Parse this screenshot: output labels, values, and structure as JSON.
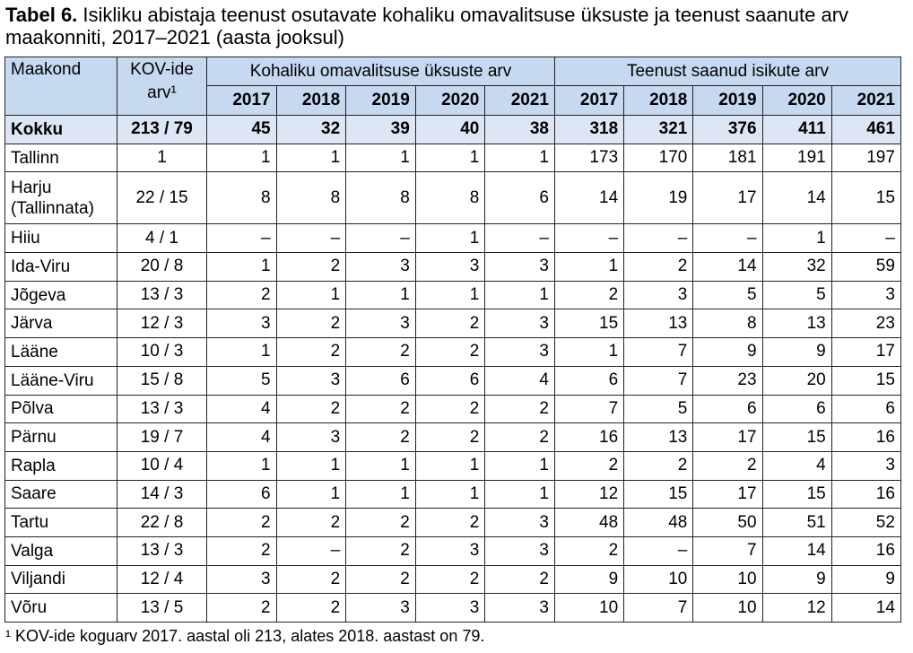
{
  "title": {
    "label": "Tabel 6.",
    "text": "Isikliku abistaja teenust osutavate kohaliku omavalitsuse üksuste ja teenust saanute arv maakonniti, 2017–2021 (aasta jooksul)"
  },
  "table": {
    "header": {
      "county": "Maakond",
      "kov": "KOV-ide arv¹",
      "group_units": "Kohaliku omavalitsuse üksuste arv",
      "group_persons": "Teenust saanud isikute arv",
      "years_units": [
        "2017",
        "2018",
        "2019",
        "2020",
        "2021"
      ],
      "years_persons": [
        "2017",
        "2018",
        "2019",
        "2020",
        "2021"
      ]
    },
    "rows": [
      [
        "Kokku",
        "213 / 79",
        "45",
        "32",
        "39",
        "40",
        "38",
        "318",
        "321",
        "376",
        "411",
        "461"
      ],
      [
        "Tallinn",
        "1",
        "1",
        "1",
        "1",
        "1",
        "1",
        "173",
        "170",
        "181",
        "191",
        "197"
      ],
      [
        "Harju (Tallinnata)",
        "22 / 15",
        "8",
        "8",
        "8",
        "8",
        "6",
        "14",
        "19",
        "17",
        "14",
        "15"
      ],
      [
        "Hiiu",
        "4 / 1",
        "–",
        "–",
        "–",
        "1",
        "–",
        "–",
        "–",
        "–",
        "1",
        "–"
      ],
      [
        "Ida-Viru",
        "20 / 8",
        "1",
        "2",
        "3",
        "3",
        "3",
        "1",
        "2",
        "14",
        "32",
        "59"
      ],
      [
        "Jõgeva",
        "13 / 3",
        "2",
        "1",
        "1",
        "1",
        "1",
        "2",
        "3",
        "5",
        "5",
        "3"
      ],
      [
        "Järva",
        "12 / 3",
        "3",
        "2",
        "3",
        "2",
        "3",
        "15",
        "13",
        "8",
        "13",
        "23"
      ],
      [
        "Lääne",
        "10 / 3",
        "1",
        "2",
        "2",
        "2",
        "3",
        "1",
        "7",
        "9",
        "9",
        "17"
      ],
      [
        "Lääne-Viru",
        "15 / 8",
        "5",
        "3",
        "6",
        "6",
        "4",
        "6",
        "7",
        "23",
        "20",
        "15"
      ],
      [
        "Põlva",
        "13 / 3",
        "4",
        "2",
        "2",
        "2",
        "2",
        "7",
        "5",
        "6",
        "6",
        "6"
      ],
      [
        "Pärnu",
        "19 / 7",
        "4",
        "3",
        "2",
        "2",
        "2",
        "16",
        "13",
        "17",
        "15",
        "16"
      ],
      [
        "Rapla",
        "10 / 4",
        "1",
        "1",
        "1",
        "1",
        "1",
        "2",
        "2",
        "2",
        "4",
        "3"
      ],
      [
        "Saare",
        "14 / 3",
        "6",
        "1",
        "1",
        "1",
        "1",
        "12",
        "15",
        "17",
        "15",
        "16"
      ],
      [
        "Tartu",
        "22 / 8",
        "2",
        "2",
        "2",
        "2",
        "3",
        "48",
        "48",
        "50",
        "51",
        "52"
      ],
      [
        "Valga",
        "13 / 3",
        "2",
        "–",
        "2",
        "3",
        "3",
        "2",
        "–",
        "7",
        "14",
        "16"
      ],
      [
        "Viljandi",
        "12 / 4",
        "3",
        "2",
        "2",
        "2",
        "2",
        "9",
        "10",
        "10",
        "9",
        "9"
      ],
      [
        "Võru",
        "13 / 5",
        "2",
        "2",
        "3",
        "3",
        "3",
        "10",
        "7",
        "10",
        "12",
        "14"
      ]
    ]
  },
  "footnote": "¹ KOV-ide koguarv 2017. aastal oli 213, alates 2018. aastast on 79."
}
